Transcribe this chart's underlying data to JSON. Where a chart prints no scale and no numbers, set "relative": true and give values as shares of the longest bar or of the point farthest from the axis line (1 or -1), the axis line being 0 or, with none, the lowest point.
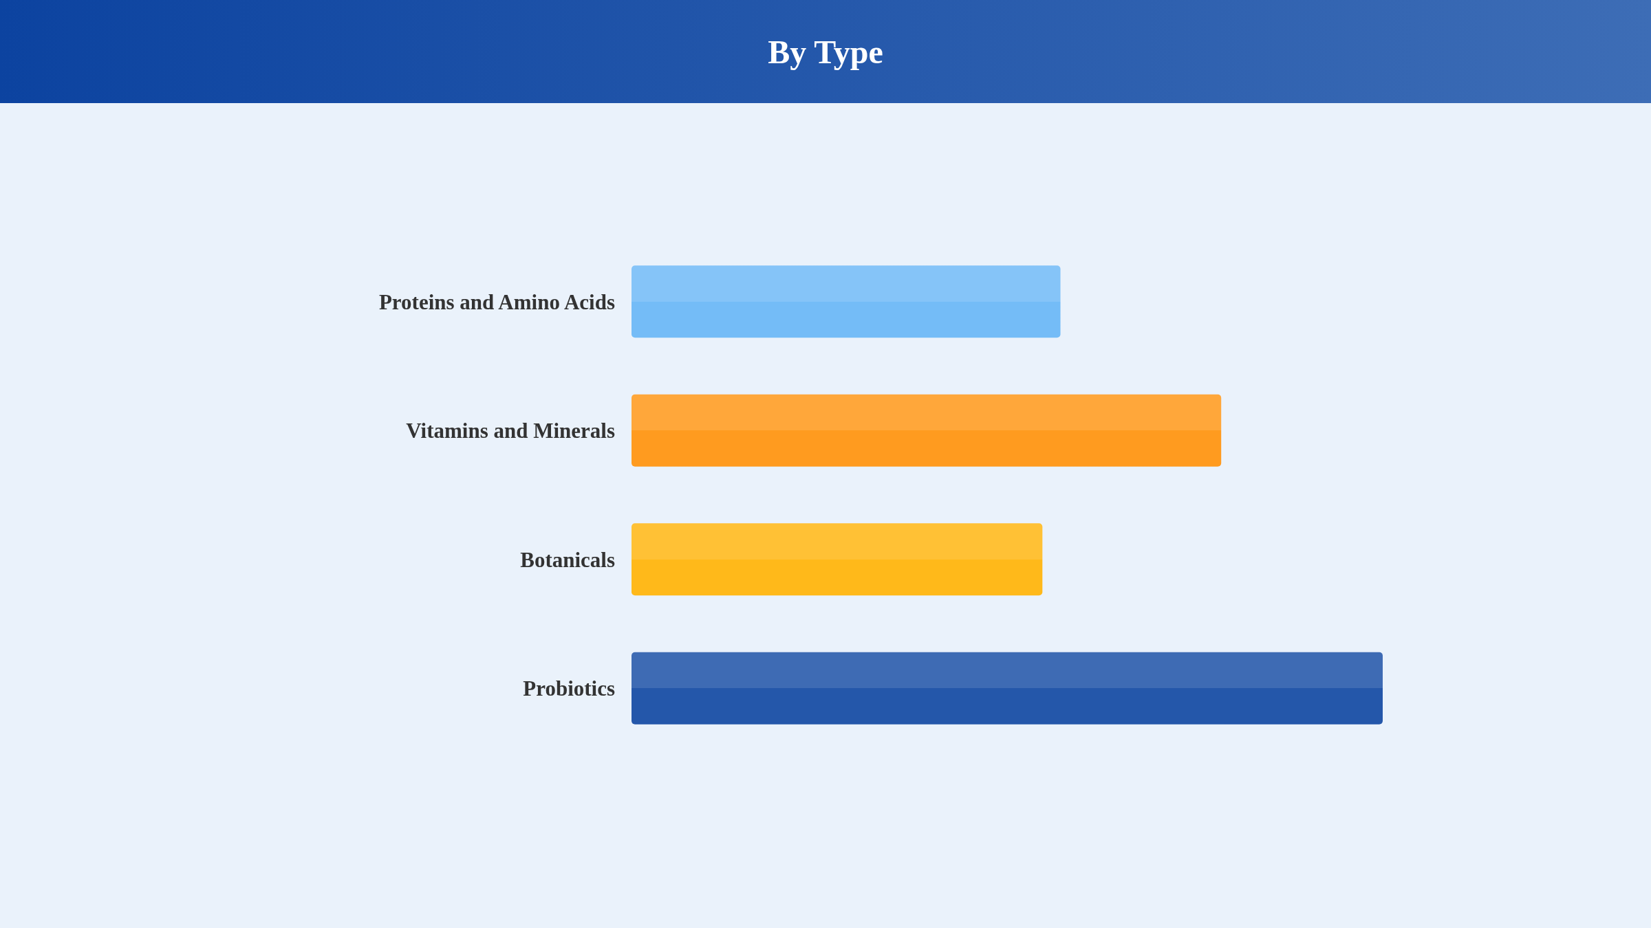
{
  "chart_data": {
    "type": "bar",
    "title": "By Type",
    "orientation": "horizontal",
    "relative": true,
    "categories": [
      "Proteins and Amino Acids",
      "Vitamins and Minerals",
      "Botanicals",
      "Probiotics"
    ],
    "values": [
      0.571,
      0.785,
      0.547,
      1
    ],
    "colors": [
      "#74bcf7",
      "#ff9b1f",
      "#ffb91a",
      "#2457aa"
    ]
  }
}
